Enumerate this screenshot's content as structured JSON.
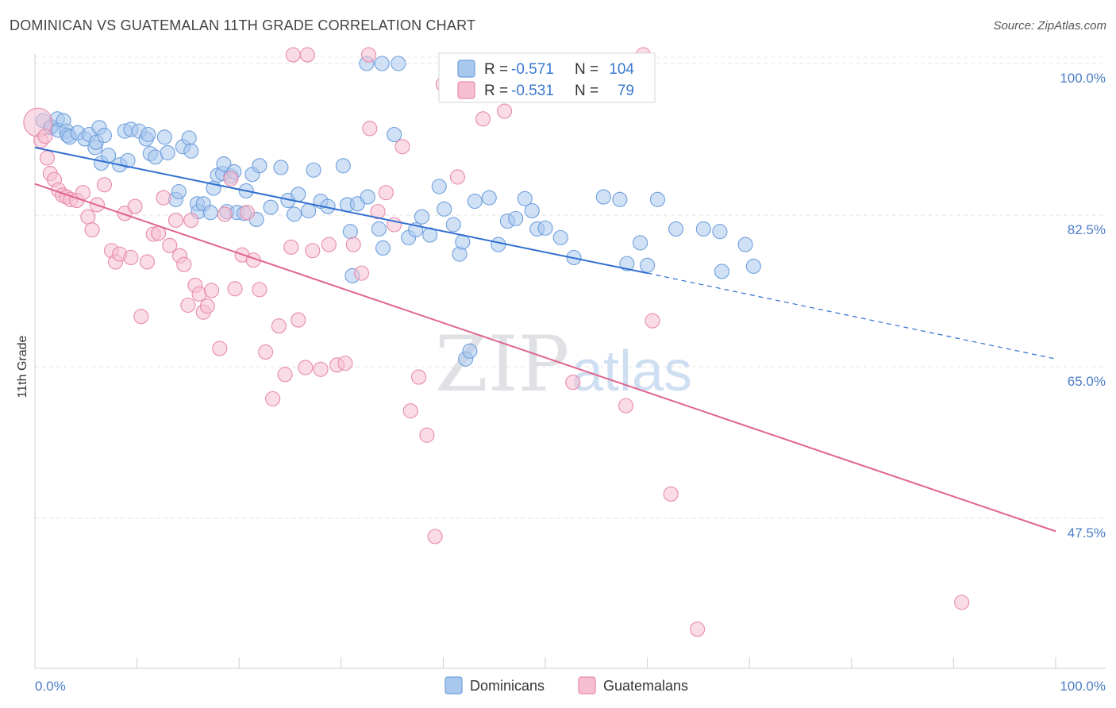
{
  "header": {
    "title": "DOMINICAN VS GUATEMALAN 11TH GRADE CORRELATION CHART",
    "source": "Source: ZipAtlas.com"
  },
  "watermark": {
    "zip": "ZIP",
    "atlas": "atlas"
  },
  "legend": {
    "rows": [
      {
        "r_label": "R = ",
        "r_value": "-0.571",
        "n_label": "N = ",
        "n_value": "104",
        "color": "#a9c8ee"
      },
      {
        "r_label": "R = ",
        "r_value": "-0.531",
        "n_label": "N = ",
        "n_value": "79",
        "color": "#f6bfd1"
      }
    ]
  },
  "bottom_legend": [
    {
      "label": "Dominicans",
      "color": "#a9c8ee"
    },
    {
      "label": "Guatemalans",
      "color": "#f6bfd1"
    }
  ],
  "chart_data": {
    "type": "scatter",
    "ylabel": "11th Grade",
    "xlabel": "",
    "xlim": [
      0,
      100
    ],
    "ylim": [
      32,
      101.5
    ],
    "y_ticks": [
      {
        "value": 100.0,
        "label": "100.0%"
      },
      {
        "value": 82.5,
        "label": "82.5%"
      },
      {
        "value": 65.0,
        "label": "65.0%"
      },
      {
        "value": 47.5,
        "label": "47.5%"
      }
    ],
    "x_tick_labels": {
      "left": "0.0%",
      "right": "100.0%"
    },
    "grid": true,
    "series": [
      {
        "name": "Dominicans",
        "color": "#a9c8ee",
        "stroke": "#6f9fdc",
        "line_color": "#2f6fd0",
        "trend": {
          "x0": 0,
          "y0": 90.3,
          "x1": 60,
          "y1": 75.8,
          "dash_to_x": 100,
          "dash_to_y": 65.9
        },
        "points": [
          [
            0.8,
            93.4
          ],
          [
            1.5,
            92.6
          ],
          [
            1.6,
            92.7
          ],
          [
            2.2,
            93.6
          ],
          [
            2.3,
            92.3
          ],
          [
            2.8,
            93.4
          ],
          [
            3.1,
            92.2
          ],
          [
            3.2,
            91.7
          ],
          [
            3.4,
            91.5
          ],
          [
            4.2,
            92.0
          ],
          [
            4.9,
            91.3
          ],
          [
            5.3,
            91.8
          ],
          [
            5.9,
            90.3
          ],
          [
            6.0,
            90.9
          ],
          [
            6.3,
            92.6
          ],
          [
            6.5,
            88.5
          ],
          [
            6.8,
            91.7
          ],
          [
            7.2,
            89.4
          ],
          [
            8.3,
            88.3
          ],
          [
            8.8,
            92.2
          ],
          [
            9.1,
            88.8
          ],
          [
            9.4,
            92.4
          ],
          [
            10.2,
            92.2
          ],
          [
            10.9,
            91.3
          ],
          [
            11.1,
            91.8
          ],
          [
            11.3,
            89.6
          ],
          [
            11.8,
            89.2
          ],
          [
            12.7,
            91.5
          ],
          [
            13.0,
            89.7
          ],
          [
            13.8,
            84.3
          ],
          [
            14.1,
            85.2
          ],
          [
            14.5,
            90.4
          ],
          [
            15.1,
            91.4
          ],
          [
            15.3,
            89.9
          ],
          [
            15.9,
            83.8
          ],
          [
            16.0,
            82.9
          ],
          [
            16.5,
            83.8
          ],
          [
            17.2,
            82.8
          ],
          [
            17.5,
            85.6
          ],
          [
            17.9,
            87.1
          ],
          [
            18.4,
            87.3
          ],
          [
            18.5,
            88.4
          ],
          [
            18.8,
            82.9
          ],
          [
            19.2,
            87.0
          ],
          [
            19.5,
            87.5
          ],
          [
            19.8,
            82.8
          ],
          [
            20.5,
            82.7
          ],
          [
            20.7,
            85.3
          ],
          [
            21.3,
            87.2
          ],
          [
            21.7,
            82.0
          ],
          [
            22.0,
            88.2
          ],
          [
            23.1,
            83.4
          ],
          [
            24.1,
            88.0
          ],
          [
            24.8,
            84.2
          ],
          [
            25.4,
            82.6
          ],
          [
            25.8,
            84.9
          ],
          [
            26.8,
            83.0
          ],
          [
            27.3,
            87.7
          ],
          [
            28.0,
            84.1
          ],
          [
            28.7,
            83.5
          ],
          [
            30.2,
            88.2
          ],
          [
            30.6,
            83.7
          ],
          [
            30.9,
            80.6
          ],
          [
            31.1,
            75.5
          ],
          [
            31.6,
            83.8
          ],
          [
            32.6,
            84.6
          ],
          [
            33.7,
            80.9
          ],
          [
            34.1,
            78.7
          ],
          [
            35.2,
            91.8
          ],
          [
            36.6,
            79.9
          ],
          [
            37.3,
            80.8
          ],
          [
            37.9,
            82.3
          ],
          [
            38.7,
            80.2
          ],
          [
            39.6,
            85.8
          ],
          [
            40.1,
            83.2
          ],
          [
            41.0,
            81.4
          ],
          [
            41.6,
            78.0
          ],
          [
            41.9,
            79.4
          ],
          [
            42.2,
            65.9
          ],
          [
            42.6,
            66.8
          ],
          [
            43.1,
            84.1
          ],
          [
            44.5,
            84.5
          ],
          [
            45.4,
            79.1
          ],
          [
            46.3,
            81.8
          ],
          [
            47.1,
            82.1
          ],
          [
            48.0,
            84.4
          ],
          [
            48.7,
            83.0
          ],
          [
            49.2,
            80.9
          ],
          [
            50.0,
            81.0
          ],
          [
            51.5,
            79.9
          ],
          [
            52.8,
            77.6
          ],
          [
            55.7,
            84.6
          ],
          [
            57.3,
            84.3
          ],
          [
            58.0,
            76.9
          ],
          [
            59.3,
            79.3
          ],
          [
            60.0,
            76.7
          ],
          [
            61.0,
            84.3
          ],
          [
            62.8,
            80.9
          ],
          [
            65.5,
            80.9
          ],
          [
            67.1,
            80.6
          ],
          [
            67.3,
            76.0
          ],
          [
            69.6,
            79.1
          ],
          [
            70.4,
            76.6
          ],
          [
            32.5,
            100
          ],
          [
            34.0,
            100
          ],
          [
            35.6,
            100
          ]
        ]
      },
      {
        "name": "Guatemalans",
        "color": "#f6bfd1",
        "stroke": "#e88aab",
        "line_color": "#e0648f",
        "trend": {
          "x0": 0,
          "y0": 86.1,
          "x1": 100,
          "y1": 46.0
        },
        "points": [
          [
            0.3,
            93.2
          ],
          [
            0.6,
            91.1
          ],
          [
            1.0,
            91.6
          ],
          [
            1.2,
            89.1
          ],
          [
            1.5,
            87.3
          ],
          [
            1.9,
            86.6
          ],
          [
            2.3,
            85.4
          ],
          [
            2.7,
            84.8
          ],
          [
            3.1,
            84.6
          ],
          [
            3.5,
            84.3
          ],
          [
            4.1,
            84.2
          ],
          [
            4.7,
            85.1
          ],
          [
            5.2,
            82.3
          ],
          [
            5.6,
            80.8
          ],
          [
            6.1,
            83.7
          ],
          [
            6.8,
            86.0
          ],
          [
            7.5,
            78.4
          ],
          [
            7.9,
            77.1
          ],
          [
            8.3,
            78.0
          ],
          [
            8.8,
            82.7
          ],
          [
            9.4,
            77.6
          ],
          [
            9.8,
            83.5
          ],
          [
            10.4,
            70.8
          ],
          [
            11.0,
            77.1
          ],
          [
            11.6,
            80.3
          ],
          [
            12.1,
            80.4
          ],
          [
            12.6,
            84.5
          ],
          [
            13.2,
            79.0
          ],
          [
            13.8,
            81.9
          ],
          [
            14.2,
            77.8
          ],
          [
            14.6,
            76.8
          ],
          [
            15.0,
            72.1
          ],
          [
            15.3,
            81.9
          ],
          [
            15.7,
            74.4
          ],
          [
            16.1,
            73.4
          ],
          [
            16.5,
            71.3
          ],
          [
            16.9,
            72.0
          ],
          [
            17.3,
            73.8
          ],
          [
            18.1,
            67.1
          ],
          [
            18.6,
            82.6
          ],
          [
            19.2,
            86.7
          ],
          [
            19.6,
            74.0
          ],
          [
            20.3,
            77.9
          ],
          [
            20.8,
            82.8
          ],
          [
            21.4,
            77.3
          ],
          [
            22.0,
            73.9
          ],
          [
            22.6,
            66.7
          ],
          [
            23.3,
            61.3
          ],
          [
            23.9,
            69.7
          ],
          [
            24.5,
            64.1
          ],
          [
            25.1,
            78.8
          ],
          [
            25.8,
            70.4
          ],
          [
            26.5,
            64.9
          ],
          [
            27.2,
            78.4
          ],
          [
            28.0,
            64.7
          ],
          [
            28.8,
            79.1
          ],
          [
            29.6,
            65.2
          ],
          [
            30.4,
            65.4
          ],
          [
            31.2,
            79.1
          ],
          [
            32.0,
            75.8
          ],
          [
            32.8,
            92.5
          ],
          [
            33.6,
            82.9
          ],
          [
            34.4,
            85.1
          ],
          [
            35.2,
            81.4
          ],
          [
            36.0,
            90.4
          ],
          [
            36.8,
            59.9
          ],
          [
            37.6,
            63.8
          ],
          [
            38.4,
            57.1
          ],
          [
            39.2,
            45.4
          ],
          [
            40.0,
            97.6
          ],
          [
            41.4,
            86.9
          ],
          [
            43.9,
            93.6
          ],
          [
            46.0,
            94.5
          ],
          [
            52.7,
            63.2
          ],
          [
            57.9,
            60.5
          ],
          [
            60.5,
            70.3
          ],
          [
            62.3,
            50.3
          ],
          [
            64.9,
            34.7
          ],
          [
            90.8,
            37.8
          ],
          [
            25.3,
            101
          ],
          [
            26.7,
            101
          ],
          [
            32.7,
            101
          ],
          [
            59.6,
            101
          ]
        ]
      }
    ]
  }
}
